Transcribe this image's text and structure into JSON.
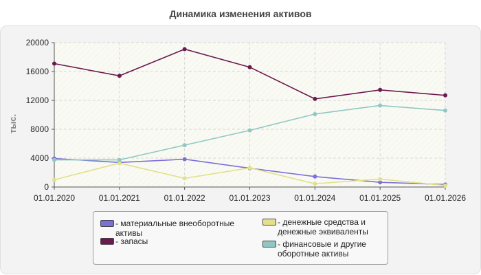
{
  "chart_data": {
    "type": "line",
    "title": "Динамика изменения активов",
    "ylabel": "тыс.",
    "xlabel": "",
    "categories": [
      "01.01.2020",
      "01.01.2021",
      "01.01.2022",
      "01.01.2023",
      "01.01.2024",
      "01.01.2025",
      "01.01.2026"
    ],
    "ylim": [
      0,
      20000
    ],
    "yticks": [
      "0",
      "4000",
      "8000",
      "12000",
      "16000",
      "20000"
    ],
    "grid": true,
    "legend_position": "bottom",
    "series": [
      {
        "name": "- материальные внеоборотные активы",
        "color": "#7b6fd8",
        "values": [
          3950,
          3400,
          3850,
          2600,
          1450,
          650,
          350
        ]
      },
      {
        "name": "- запасы",
        "color": "#6b1a4e",
        "values": [
          17100,
          15400,
          19100,
          16600,
          12200,
          13450,
          12700
        ]
      },
      {
        "name": "- денежные средства и денежные эквиваленты",
        "color": "#e2e08a",
        "values": [
          1000,
          3300,
          1200,
          2650,
          450,
          1100,
          200
        ]
      },
      {
        "name": "- финансовые и другие оборотные активы",
        "color": "#8ec8c4",
        "values": [
          3750,
          3750,
          5800,
          7850,
          10100,
          11300,
          10600
        ]
      }
    ]
  }
}
